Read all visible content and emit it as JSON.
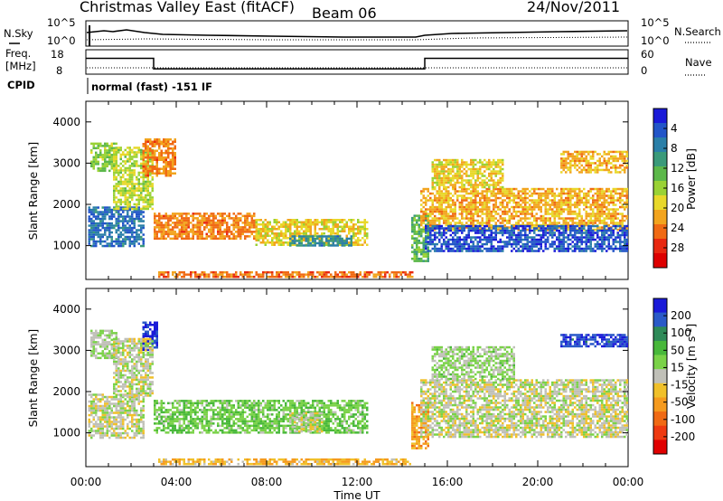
{
  "title": {
    "station": "Christmas Valley East (fitACF)",
    "beam": "Beam 06",
    "date": "24/Nov/2011"
  },
  "status_panels": {
    "nsky_label": "N.Sky",
    "nsky_ticks": [
      "10^5",
      "10^0"
    ],
    "nsearch_label": "N.Search",
    "nsearch_ticks": [
      "10^5",
      "10^0"
    ],
    "freq_label_line1": "Freq.",
    "freq_label_line2": "[MHz]",
    "freq_ticks": [
      "18",
      "8"
    ],
    "nave_label": "Nave",
    "nave_ticks": [
      "60",
      "0"
    ],
    "cpid_label": "CPID",
    "cpid_text": "normal (fast) -151 IF",
    "freq_series": [
      {
        "t": 0.0,
        "mhz": 14.5
      },
      {
        "t": 3.0,
        "mhz": 14.5
      },
      {
        "t": 3.0,
        "mhz": 10.2
      },
      {
        "t": 15.0,
        "mhz": 10.2
      },
      {
        "t": 15.0,
        "mhz": 14.5
      },
      {
        "t": 24.0,
        "mhz": 14.5
      }
    ]
  },
  "chart_data": [
    {
      "type": "heatmap",
      "parameter": "Power",
      "xlabel": "",
      "ylabel": "Slant Range [km]",
      "xlim": [
        0,
        24
      ],
      "ylim": [
        180,
        4500
      ],
      "x_ticks": [
        "00:00",
        "04:00",
        "08:00",
        "12:00",
        "16:00",
        "20:00",
        "00:00"
      ],
      "y_ticks": [
        1000,
        2000,
        3000,
        4000
      ],
      "colorbar": {
        "label": "Power [dB]",
        "range": [
          0,
          30
        ],
        "ticks": [
          "4",
          "8",
          "12",
          "16",
          "20",
          "24",
          "28"
        ],
        "colors": [
          "#1a1ad8",
          "#2255c8",
          "#2a7fa8",
          "#3a9a7a",
          "#5cb84a",
          "#9ad235",
          "#e8d82a",
          "#f2a41e",
          "#f06a14",
          "#e82810",
          "#dd0000"
        ]
      },
      "echo_regions": [
        {
          "t0": 0.1,
          "t1": 2.6,
          "r0": 1000,
          "r1": 1950,
          "level": 24
        },
        {
          "t0": 0.2,
          "t1": 1.4,
          "r0": 2800,
          "r1": 3500,
          "level": 16
        },
        {
          "t0": 1.2,
          "t1": 3.0,
          "r0": 1900,
          "r1": 3400,
          "level": 14
        },
        {
          "t0": 2.5,
          "t1": 4.0,
          "r0": 2700,
          "r1": 3600,
          "level": 8
        },
        {
          "t0": 3.0,
          "t1": 7.5,
          "r0": 1150,
          "r1": 1800,
          "level": 8
        },
        {
          "t0": 7.5,
          "t1": 12.5,
          "r0": 1000,
          "r1": 1650,
          "level": 12
        },
        {
          "t0": 9.0,
          "t1": 11.8,
          "r0": 1000,
          "r1": 1250,
          "level": 22
        },
        {
          "t0": 3.2,
          "t1": 14.5,
          "r0": 250,
          "r1": 380,
          "level": 7
        },
        {
          "t0": 14.4,
          "t1": 15.2,
          "r0": 650,
          "r1": 1750,
          "level": 18
        },
        {
          "t0": 14.8,
          "t1": 24.0,
          "r0": 1400,
          "r1": 2400,
          "level": 10
        },
        {
          "t0": 15.0,
          "t1": 24.0,
          "r0": 850,
          "r1": 1500,
          "level": 26
        },
        {
          "t0": 15.3,
          "t1": 18.5,
          "r0": 2400,
          "r1": 3100,
          "level": 12
        },
        {
          "t0": 21.0,
          "t1": 24.0,
          "r0": 2800,
          "r1": 3300,
          "level": 10
        }
      ]
    },
    {
      "type": "heatmap",
      "parameter": "Velocity",
      "xlabel": "Time UT",
      "ylabel": "Slant Range [km]",
      "xlim": [
        0,
        24
      ],
      "ylim": [
        180,
        4500
      ],
      "x_ticks": [
        "00:00",
        "04:00",
        "08:00",
        "12:00",
        "16:00",
        "20:00",
        "00:00"
      ],
      "y_ticks": [
        1000,
        2000,
        3000,
        4000
      ],
      "colorbar": {
        "label": "Velocity [m s^-1]",
        "range": [
          -250,
          250
        ],
        "ticks": [
          "200",
          "100",
          "50",
          "15",
          "-15",
          "-50",
          "-100",
          "-200"
        ],
        "colors": [
          "#1a1ad8",
          "#2a5ac8",
          "#2e8a58",
          "#48b83a",
          "#7ad248",
          "#c0c0b8",
          "#f0c02a",
          "#f59a1e",
          "#f06a14",
          "#ee3a10",
          "#e00000"
        ]
      },
      "echo_regions": [
        {
          "t0": 0.1,
          "t1": 2.6,
          "r0": 900,
          "r1": 1950,
          "level": 0
        },
        {
          "t0": 0.2,
          "t1": 1.4,
          "r0": 2800,
          "r1": 3500,
          "level": 20
        },
        {
          "t0": 2.5,
          "t1": 3.2,
          "r0": 3000,
          "r1": 3700,
          "level": 210
        },
        {
          "t0": 1.2,
          "t1": 3.0,
          "r0": 1900,
          "r1": 3300,
          "level": 5
        },
        {
          "t0": 3.0,
          "t1": 12.5,
          "r0": 1000,
          "r1": 1800,
          "level": 60
        },
        {
          "t0": 9.0,
          "t1": 10.5,
          "r0": 1050,
          "r1": 1500,
          "level": 0
        },
        {
          "t0": 3.2,
          "t1": 14.5,
          "r0": 250,
          "r1": 380,
          "level": -60
        },
        {
          "t0": 14.4,
          "t1": 15.2,
          "r0": 650,
          "r1": 1750,
          "level": -80
        },
        {
          "t0": 14.8,
          "t1": 24.0,
          "r0": 900,
          "r1": 2300,
          "level": 0
        },
        {
          "t0": 15.3,
          "t1": 19.0,
          "r0": 2300,
          "r1": 3100,
          "level": 30
        },
        {
          "t0": 21.0,
          "t1": 24.0,
          "r0": 3100,
          "r1": 3400,
          "level": 200
        }
      ]
    }
  ]
}
